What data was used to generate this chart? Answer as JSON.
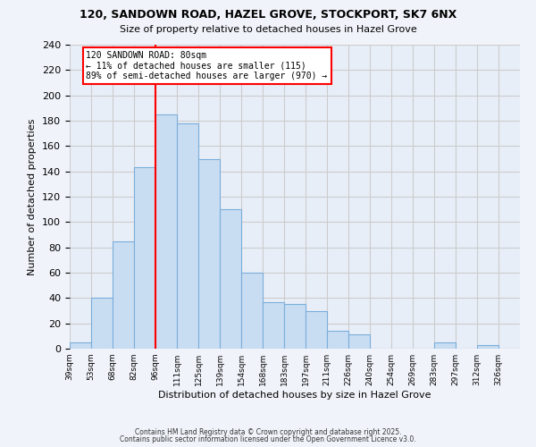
{
  "title": "120, SANDOWN ROAD, HAZEL GROVE, STOCKPORT, SK7 6NX",
  "subtitle": "Size of property relative to detached houses in Hazel Grove",
  "xlabel": "Distribution of detached houses by size in Hazel Grove",
  "ylabel": "Number of detached properties",
  "bar_color": "#c9ddf2",
  "bar_edge_color": "#7aaedb",
  "bin_labels": [
    "39sqm",
    "53sqm",
    "68sqm",
    "82sqm",
    "96sqm",
    "111sqm",
    "125sqm",
    "139sqm",
    "154sqm",
    "168sqm",
    "183sqm",
    "197sqm",
    "211sqm",
    "226sqm",
    "240sqm",
    "254sqm",
    "269sqm",
    "283sqm",
    "297sqm",
    "312sqm",
    "326sqm"
  ],
  "bar_values": [
    5,
    40,
    85,
    143,
    185,
    178,
    150,
    110,
    60,
    37,
    35,
    30,
    14,
    11,
    0,
    0,
    0,
    5,
    0,
    3,
    0
  ],
  "vline_x_idx": 3,
  "vline_color": "red",
  "annotation_title": "120 SANDOWN ROAD: 80sqm",
  "annotation_line1": "← 11% of detached houses are smaller (115)",
  "annotation_line2": "89% of semi-detached houses are larger (970) →",
  "annotation_box_color": "#ffffff",
  "annotation_box_edge": "red",
  "ylim": [
    0,
    240
  ],
  "yticks": [
    0,
    20,
    40,
    60,
    80,
    100,
    120,
    140,
    160,
    180,
    200,
    220,
    240
  ],
  "grid_color": "#cccccc",
  "background_color": "#f0f4fa",
  "plot_bg_color": "#e8eef8",
  "footer1": "Contains HM Land Registry data © Crown copyright and database right 2025.",
  "footer2": "Contains public sector information licensed under the Open Government Licence v3.0."
}
